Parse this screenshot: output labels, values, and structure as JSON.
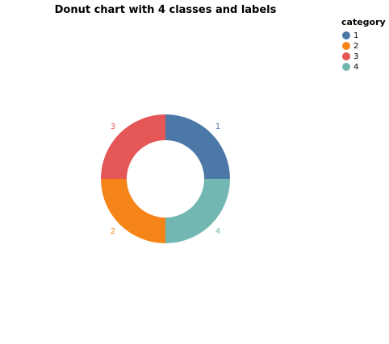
{
  "chart_data": {
    "type": "pie",
    "donut": true,
    "title": "Donut chart with 4 classes and labels",
    "legend": {
      "title": "category",
      "placement": "top-right"
    },
    "slices": [
      {
        "category": "1",
        "value": 4,
        "color": "#4c78a8"
      },
      {
        "category": "2",
        "value": 4,
        "color": "#f58518"
      },
      {
        "category": "3",
        "value": 4,
        "color": "#e45756"
      },
      {
        "category": "4",
        "value": 4,
        "color": "#72b7b2"
      }
    ],
    "slice_order_clockwise_from_top": [
      "1",
      "4",
      "2",
      "3"
    ]
  }
}
